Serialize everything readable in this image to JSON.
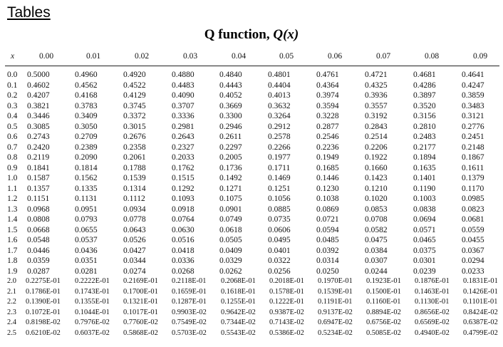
{
  "page": {
    "heading": "Tables",
    "title_prefix": "Q function, ",
    "title_var": "Q",
    "title_arg": "(x)"
  },
  "table": {
    "x_header": "x",
    "columns": [
      "0.00",
      "0.01",
      "0.02",
      "0.03",
      "0.04",
      "0.05",
      "0.06",
      "0.07",
      "0.08",
      "0.09"
    ],
    "rows": [
      {
        "x": "0.0",
        "values": [
          "0.5000",
          "0.4960",
          "0.4920",
          "0.4880",
          "0.4840",
          "0.4801",
          "0.4761",
          "0.4721",
          "0.4681",
          "0.4641"
        ]
      },
      {
        "x": "0.1",
        "values": [
          "0.4602",
          "0.4562",
          "0.4522",
          "0.4483",
          "0.4443",
          "0.4404",
          "0.4364",
          "0.4325",
          "0.4286",
          "0.4247"
        ]
      },
      {
        "x": "0.2",
        "values": [
          "0.4207",
          "0.4168",
          "0.4129",
          "0.4090",
          "0.4052",
          "0.4013",
          "0.3974",
          "0.3936",
          "0.3897",
          "0.3859"
        ]
      },
      {
        "x": "0.3",
        "values": [
          "0.3821",
          "0.3783",
          "0.3745",
          "0.3707",
          "0.3669",
          "0.3632",
          "0.3594",
          "0.3557",
          "0.3520",
          "0.3483"
        ]
      },
      {
        "x": "0.4",
        "values": [
          "0.3446",
          "0.3409",
          "0.3372",
          "0.3336",
          "0.3300",
          "0.3264",
          "0.3228",
          "0.3192",
          "0.3156",
          "0.3121"
        ]
      },
      {
        "x": "0.5",
        "values": [
          "0.3085",
          "0.3050",
          "0.3015",
          "0.2981",
          "0.2946",
          "0.2912",
          "0.2877",
          "0.2843",
          "0.2810",
          "0.2776"
        ]
      },
      {
        "x": "0.6",
        "values": [
          "0.2743",
          "0.2709",
          "0.2676",
          "0.2643",
          "0.2611",
          "0.2578",
          "0.2546",
          "0.2514",
          "0.2483",
          "0.2451"
        ]
      },
      {
        "x": "0.7",
        "values": [
          "0.2420",
          "0.2389",
          "0.2358",
          "0.2327",
          "0.2297",
          "0.2266",
          "0.2236",
          "0.2206",
          "0.2177",
          "0.2148"
        ]
      },
      {
        "x": "0.8",
        "values": [
          "0.2119",
          "0.2090",
          "0.2061",
          "0.2033",
          "0.2005",
          "0.1977",
          "0.1949",
          "0.1922",
          "0.1894",
          "0.1867"
        ]
      },
      {
        "x": "0.9",
        "values": [
          "0.1841",
          "0.1814",
          "0.1788",
          "0.1762",
          "0.1736",
          "0.1711",
          "0.1685",
          "0.1660",
          "0.1635",
          "0.1611"
        ]
      },
      {
        "x": "1.0",
        "values": [
          "0.1587",
          "0.1562",
          "0.1539",
          "0.1515",
          "0.1492",
          "0.1469",
          "0.1446",
          "0.1423",
          "0.1401",
          "0.1379"
        ]
      },
      {
        "x": "1.1",
        "values": [
          "0.1357",
          "0.1335",
          "0.1314",
          "0.1292",
          "0.1271",
          "0.1251",
          "0.1230",
          "0.1210",
          "0.1190",
          "0.1170"
        ]
      },
      {
        "x": "1.2",
        "values": [
          "0.1151",
          "0.1131",
          "0.1112",
          "0.1093",
          "0.1075",
          "0.1056",
          "0.1038",
          "0.1020",
          "0.1003",
          "0.0985"
        ]
      },
      {
        "x": "1.3",
        "values": [
          "0.0968",
          "0.0951",
          "0.0934",
          "0.0918",
          "0.0901",
          "0.0885",
          "0.0869",
          "0.0853",
          "0.0838",
          "0.0823"
        ]
      },
      {
        "x": "1.4",
        "values": [
          "0.0808",
          "0.0793",
          "0.0778",
          "0.0764",
          "0.0749",
          "0.0735",
          "0.0721",
          "0.0708",
          "0.0694",
          "0.0681"
        ]
      },
      {
        "x": "1.5",
        "values": [
          "0.0668",
          "0.0655",
          "0.0643",
          "0.0630",
          "0.0618",
          "0.0606",
          "0.0594",
          "0.0582",
          "0.0571",
          "0.0559"
        ]
      },
      {
        "x": "1.6",
        "values": [
          "0.0548",
          "0.0537",
          "0.0526",
          "0.0516",
          "0.0505",
          "0.0495",
          "0.0485",
          "0.0475",
          "0.0465",
          "0.0455"
        ]
      },
      {
        "x": "1.7",
        "values": [
          "0.0446",
          "0.0436",
          "0.0427",
          "0.0418",
          "0.0409",
          "0.0401",
          "0.0392",
          "0.0384",
          "0.0375",
          "0.0367"
        ]
      },
      {
        "x": "1.8",
        "values": [
          "0.0359",
          "0.0351",
          "0.0344",
          "0.0336",
          "0.0329",
          "0.0322",
          "0.0314",
          "0.0307",
          "0.0301",
          "0.0294"
        ]
      },
      {
        "x": "1.9",
        "values": [
          "0.0287",
          "0.0281",
          "0.0274",
          "0.0268",
          "0.0262",
          "0.0256",
          "0.0250",
          "0.0244",
          "0.0239",
          "0.0233"
        ]
      },
      {
        "x": "2.0",
        "values": [
          "0.2275E-01",
          "0.2222E-01",
          "0.2169E-01",
          "0.2118E-01",
          "0.2068E-01",
          "0.2018E-01",
          "0.1970E-01",
          "0.1923E-01",
          "0.1876E-01",
          "0.1831E-01"
        ]
      },
      {
        "x": "2.1",
        "values": [
          "0.1786E-01",
          "0.1743E-01",
          "0.1700E-01",
          "0.1659E-01",
          "0.1618E-01",
          "0.1578E-01",
          "0.1539E-01",
          "0.1500E-01",
          "0.1463E-01",
          "0.1426E-01"
        ]
      },
      {
        "x": "2.2",
        "values": [
          "0.1390E-01",
          "0.1355E-01",
          "0.1321E-01",
          "0.1287E-01",
          "0.1255E-01",
          "0.1222E-01",
          "0.1191E-01",
          "0.1160E-01",
          "0.1130E-01",
          "0.1101E-01"
        ]
      },
      {
        "x": "2.3",
        "values": [
          "0.1072E-01",
          "0.1044E-01",
          "0.1017E-01",
          "0.9903E-02",
          "0.9642E-02",
          "0.9387E-02",
          "0.9137E-02",
          "0.8894E-02",
          "0.8656E-02",
          "0.8424E-02"
        ]
      },
      {
        "x": "2.4",
        "values": [
          "0.8198E-02",
          "0.7976E-02",
          "0.7760E-02",
          "0.7549E-02",
          "0.7344E-02",
          "0.7143E-02",
          "0.6947E-02",
          "0.6756E-02",
          "0.6569E-02",
          "0.6387E-02"
        ]
      },
      {
        "x": "2.5",
        "values": [
          "0.6210E-02",
          "0.6037E-02",
          "0.5868E-02",
          "0.5703E-02",
          "0.5543E-02",
          "0.5386E-02",
          "0.5234E-02",
          "0.5085E-02",
          "0.4940E-02",
          "0.4799E-02"
        ]
      }
    ]
  }
}
